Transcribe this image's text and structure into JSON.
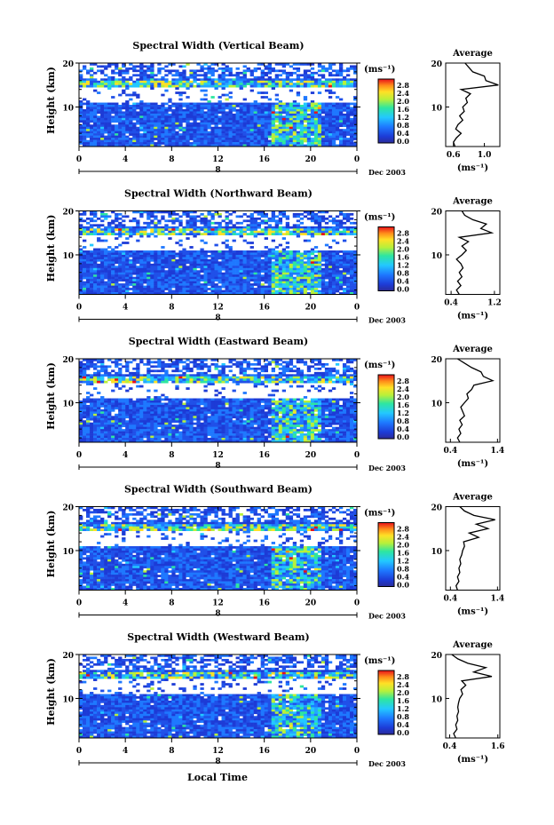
{
  "figure": {
    "date_label": "Dec 2003",
    "x_axis_label": "Local Time",
    "y_axis_label": "Height (km)",
    "colorbar_unit": "(ms⁻¹)",
    "average_title": "Average",
    "average_xlabel": "(ms⁻¹)",
    "day_marker": "8"
  },
  "chart_data": [
    {
      "type": "heatmap",
      "title": "Spectral Width (Vertical Beam)",
      "x_ticks": [
        "0",
        "4",
        "8",
        "12",
        "16",
        "20",
        "0"
      ],
      "y_ticks": [
        "20",
        "10"
      ],
      "ylim": [
        1,
        20
      ],
      "colorbar_ticks": [
        "2.8",
        "2.4",
        "2.0",
        "1.6",
        "1.2",
        "0.8",
        "0.4",
        "0.0"
      ],
      "profile": {
        "type": "line",
        "xticks": [
          "0.6",
          "1.0"
        ],
        "xlim": [
          0.5,
          1.2
        ],
        "y": [
          1,
          2,
          3,
          4,
          5,
          6,
          7,
          8,
          9,
          10,
          11,
          12,
          13,
          14,
          15,
          16,
          17,
          18,
          19,
          20
        ],
        "x": [
          0.62,
          0.6,
          0.64,
          0.7,
          0.63,
          0.66,
          0.72,
          0.68,
          0.74,
          0.72,
          0.78,
          0.76,
          0.82,
          0.7,
          1.18,
          1.02,
          1.0,
          0.85,
          0.8,
          0.75
        ]
      }
    },
    {
      "type": "heatmap",
      "title": "Spectral Width (Northward Beam)",
      "x_ticks": [
        "0",
        "4",
        "8",
        "12",
        "16",
        "20",
        "0"
      ],
      "y_ticks": [
        "20",
        "10"
      ],
      "ylim": [
        1,
        20
      ],
      "colorbar_ticks": [
        "2.8",
        "2.4",
        "2.0",
        "1.6",
        "1.2",
        "0.8",
        "0.4",
        "0.0"
      ],
      "profile": {
        "type": "line",
        "xticks": [
          "0.4",
          "1.2"
        ],
        "xlim": [
          0.3,
          1.3
        ],
        "y": [
          1,
          2,
          3,
          4,
          5,
          6,
          7,
          8,
          9,
          10,
          11,
          12,
          13,
          14,
          15,
          16,
          17,
          18,
          19,
          20
        ],
        "x": [
          0.55,
          0.5,
          0.58,
          0.52,
          0.6,
          0.55,
          0.62,
          0.58,
          0.5,
          0.6,
          0.68,
          0.6,
          0.72,
          0.55,
          1.15,
          0.95,
          1.05,
          0.8,
          0.65,
          0.6
        ]
      }
    },
    {
      "type": "heatmap",
      "title": "Spectral Width (Eastward Beam)",
      "x_ticks": [
        "0",
        "4",
        "8",
        "12",
        "16",
        "20",
        "0"
      ],
      "y_ticks": [
        "20",
        "10"
      ],
      "ylim": [
        1,
        20
      ],
      "colorbar_ticks": [
        "2.8",
        "2.4",
        "2.0",
        "1.6",
        "1.2",
        "0.8",
        "0.4",
        "0.0"
      ],
      "profile": {
        "type": "line",
        "xticks": [
          "0.4",
          "1.4"
        ],
        "xlim": [
          0.3,
          1.45
        ],
        "y": [
          1,
          2,
          3,
          4,
          5,
          6,
          7,
          8,
          9,
          10,
          11,
          12,
          13,
          14,
          15,
          16,
          17,
          18,
          19,
          20
        ],
        "x": [
          0.6,
          0.55,
          0.62,
          0.58,
          0.65,
          0.6,
          0.7,
          0.66,
          0.62,
          0.7,
          0.78,
          0.75,
          0.85,
          0.9,
          1.3,
          1.1,
          1.05,
          0.85,
          0.7,
          0.55
        ]
      }
    },
    {
      "type": "heatmap",
      "title": "Spectral Width (Southward Beam)",
      "x_ticks": [
        "0",
        "4",
        "8",
        "12",
        "16",
        "20",
        "0"
      ],
      "y_ticks": [
        "20",
        "10"
      ],
      "ylim": [
        1,
        20
      ],
      "colorbar_ticks": [
        "2.8",
        "2.4",
        "2.0",
        "1.6",
        "1.2",
        "0.8",
        "0.4",
        "0.0"
      ],
      "profile": {
        "type": "line",
        "xticks": [
          "0.4",
          "1.4"
        ],
        "xlim": [
          0.3,
          1.45
        ],
        "y": [
          1,
          2,
          3,
          4,
          5,
          6,
          7,
          8,
          9,
          10,
          11,
          12,
          13,
          14,
          15,
          16,
          17,
          18,
          19,
          20
        ],
        "x": [
          0.55,
          0.52,
          0.58,
          0.55,
          0.6,
          0.58,
          0.62,
          0.6,
          0.64,
          0.66,
          0.7,
          0.68,
          1.0,
          0.8,
          1.2,
          0.95,
          1.35,
          0.9,
          0.7,
          0.6
        ]
      }
    },
    {
      "type": "heatmap",
      "title": "Spectral Width (Westward Beam)",
      "x_ticks": [
        "0",
        "4",
        "8",
        "12",
        "16",
        "20",
        "0"
      ],
      "y_ticks": [
        "20",
        "10"
      ],
      "ylim": [
        1,
        20
      ],
      "colorbar_ticks": [
        "2.8",
        "2.4",
        "2.0",
        "1.6",
        "1.2",
        "0.8",
        "0.4",
        "0.0"
      ],
      "profile": {
        "type": "line",
        "xticks": [
          "0.4",
          "1.6"
        ],
        "xlim": [
          0.3,
          1.65
        ],
        "y": [
          1,
          2,
          3,
          4,
          5,
          6,
          7,
          8,
          9,
          10,
          11,
          12,
          13,
          14,
          15,
          16,
          17,
          18,
          19,
          20
        ],
        "x": [
          0.55,
          0.5,
          0.58,
          0.55,
          0.6,
          0.58,
          0.62,
          0.6,
          0.62,
          0.65,
          0.72,
          0.68,
          0.8,
          0.7,
          1.45,
          1.0,
          1.3,
          0.85,
          0.6,
          0.45
        ]
      }
    }
  ]
}
